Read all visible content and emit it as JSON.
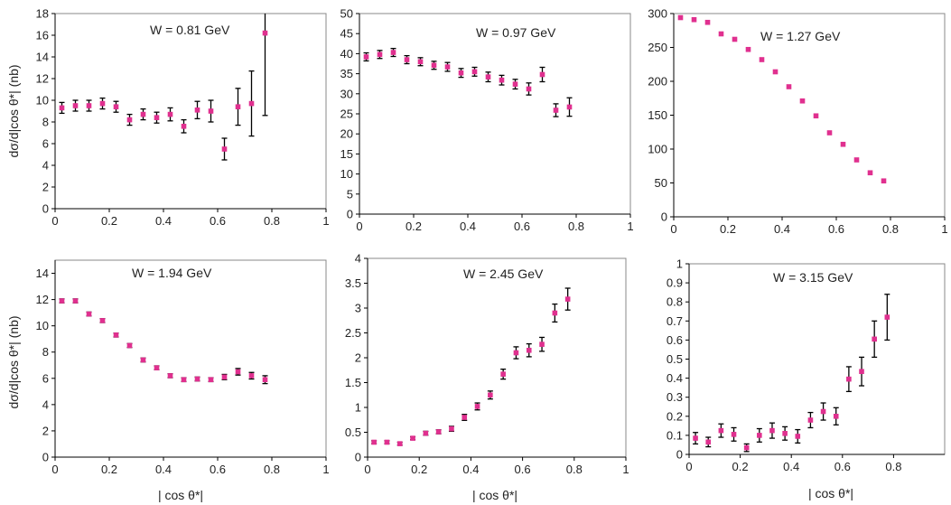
{
  "chart_data": [
    {
      "type": "scatter",
      "annotation": "W = 0.81 GeV",
      "xlabel": "",
      "ylabel": "dσ/d|cos θ*| (nb)",
      "xlim": [
        0,
        1
      ],
      "xticks": [
        0,
        0.2,
        0.4,
        0.6,
        0.8,
        1
      ],
      "xticklabels": [
        "0",
        "0.2",
        "0.4",
        "0.6",
        "0.8",
        "1"
      ],
      "ylim": [
        0,
        18
      ],
      "yticks": [
        0,
        2,
        4,
        6,
        8,
        10,
        12,
        14,
        16,
        18
      ],
      "yticklabels": [
        "0",
        "2",
        "4",
        "6",
        "8",
        "10",
        "12",
        "14",
        "16",
        "18"
      ],
      "marker_color": "#e0308f",
      "points": [
        {
          "x": 0.025,
          "y": 9.3,
          "err": 0.5
        },
        {
          "x": 0.075,
          "y": 9.5,
          "err": 0.5
        },
        {
          "x": 0.125,
          "y": 9.5,
          "err": 0.5
        },
        {
          "x": 0.175,
          "y": 9.7,
          "err": 0.5
        },
        {
          "x": 0.225,
          "y": 9.4,
          "err": 0.5
        },
        {
          "x": 0.275,
          "y": 8.2,
          "err": 0.5
        },
        {
          "x": 0.325,
          "y": 8.7,
          "err": 0.5
        },
        {
          "x": 0.375,
          "y": 8.4,
          "err": 0.5
        },
        {
          "x": 0.425,
          "y": 8.7,
          "err": 0.6
        },
        {
          "x": 0.475,
          "y": 7.6,
          "err": 0.6
        },
        {
          "x": 0.525,
          "y": 9.1,
          "err": 0.8
        },
        {
          "x": 0.575,
          "y": 9.0,
          "err": 1.0
        },
        {
          "x": 0.625,
          "y": 5.5,
          "err": 1.0
        },
        {
          "x": 0.675,
          "y": 9.4,
          "err": 1.7
        },
        {
          "x": 0.725,
          "y": 9.7,
          "err": 3.0
        },
        {
          "x": 0.775,
          "y": 16.2,
          "err": 7.6
        }
      ]
    },
    {
      "type": "scatter",
      "annotation": "W = 0.97 GeV",
      "xlabel": "",
      "ylabel": "",
      "xlim": [
        0,
        1
      ],
      "xticks": [
        0,
        0.2,
        0.4,
        0.6,
        0.8,
        1
      ],
      "xticklabels": [
        "0",
        "0.2",
        "0.4",
        "0.6",
        "0.8",
        "1"
      ],
      "ylim": [
        0,
        50
      ],
      "yticks": [
        0,
        5,
        10,
        15,
        20,
        25,
        30,
        35,
        40,
        45,
        50
      ],
      "yticklabels": [
        "0",
        "5",
        "10",
        "15",
        "20",
        "25",
        "30",
        "35",
        "40",
        "45",
        "50"
      ],
      "marker_color": "#e0308f",
      "points": [
        {
          "x": 0.025,
          "y": 39.2,
          "err": 1.0
        },
        {
          "x": 0.075,
          "y": 39.8,
          "err": 1.0
        },
        {
          "x": 0.125,
          "y": 40.3,
          "err": 1.0
        },
        {
          "x": 0.175,
          "y": 38.5,
          "err": 1.0
        },
        {
          "x": 0.225,
          "y": 38.0,
          "err": 1.0
        },
        {
          "x": 0.275,
          "y": 37.1,
          "err": 1.0
        },
        {
          "x": 0.325,
          "y": 36.7,
          "err": 1.1
        },
        {
          "x": 0.375,
          "y": 35.2,
          "err": 1.1
        },
        {
          "x": 0.425,
          "y": 35.5,
          "err": 1.1
        },
        {
          "x": 0.475,
          "y": 34.2,
          "err": 1.2
        },
        {
          "x": 0.525,
          "y": 33.4,
          "err": 1.2
        },
        {
          "x": 0.575,
          "y": 32.4,
          "err": 1.2
        },
        {
          "x": 0.625,
          "y": 31.2,
          "err": 1.5
        },
        {
          "x": 0.675,
          "y": 34.8,
          "err": 1.8
        },
        {
          "x": 0.725,
          "y": 25.9,
          "err": 1.6
        },
        {
          "x": 0.775,
          "y": 26.7,
          "err": 2.3
        }
      ]
    },
    {
      "type": "scatter",
      "annotation": "W =  1.27 GeV",
      "xlabel": "",
      "ylabel": "",
      "xlim": [
        0,
        1
      ],
      "xticks": [
        0,
        0.2,
        0.4,
        0.6,
        0.8,
        1
      ],
      "xticklabels": [
        "0",
        "0.2",
        "0.4",
        "0.6",
        "0.8",
        "1"
      ],
      "ylim": [
        0,
        300
      ],
      "yticks": [
        0,
        50,
        100,
        150,
        200,
        250,
        300
      ],
      "yticklabels": [
        "0",
        "50",
        "100",
        "150",
        "200",
        "250",
        "300"
      ],
      "marker_color": "#e0308f",
      "points": [
        {
          "x": 0.025,
          "y": 294,
          "err": 0
        },
        {
          "x": 0.075,
          "y": 291,
          "err": 0
        },
        {
          "x": 0.125,
          "y": 287,
          "err": 0
        },
        {
          "x": 0.175,
          "y": 270,
          "err": 0
        },
        {
          "x": 0.225,
          "y": 262,
          "err": 0
        },
        {
          "x": 0.275,
          "y": 247,
          "err": 0
        },
        {
          "x": 0.325,
          "y": 232,
          "err": 0
        },
        {
          "x": 0.375,
          "y": 214,
          "err": 0
        },
        {
          "x": 0.425,
          "y": 192,
          "err": 0
        },
        {
          "x": 0.475,
          "y": 171,
          "err": 0
        },
        {
          "x": 0.525,
          "y": 149,
          "err": 0
        },
        {
          "x": 0.575,
          "y": 124,
          "err": 0
        },
        {
          "x": 0.625,
          "y": 107,
          "err": 0
        },
        {
          "x": 0.675,
          "y": 84,
          "err": 0
        },
        {
          "x": 0.725,
          "y": 65,
          "err": 0
        },
        {
          "x": 0.775,
          "y": 53,
          "err": 0
        }
      ]
    },
    {
      "type": "scatter",
      "annotation": "W = 1.94 GeV",
      "xlabel": "| cos θ*|",
      "ylabel": "dσ/d|cos θ*| (nb)",
      "xlim": [
        0,
        1
      ],
      "xticks": [
        0,
        0.2,
        0.4,
        0.6,
        0.8,
        1
      ],
      "xticklabels": [
        "0",
        "0.2",
        "0.4",
        "0.6",
        "0.8",
        "1"
      ],
      "ylim": [
        0,
        15
      ],
      "yticks": [
        0,
        2,
        4,
        6,
        8,
        10,
        12,
        14
      ],
      "yticklabels": [
        "0",
        "2",
        "4",
        "6",
        "8",
        "10",
        "12",
        "14"
      ],
      "marker_color": "#e0308f",
      "points": [
        {
          "x": 0.025,
          "y": 11.9,
          "err": 0.15
        },
        {
          "x": 0.075,
          "y": 11.9,
          "err": 0.15
        },
        {
          "x": 0.125,
          "y": 10.9,
          "err": 0.15
        },
        {
          "x": 0.175,
          "y": 10.4,
          "err": 0.15
        },
        {
          "x": 0.225,
          "y": 9.3,
          "err": 0.15
        },
        {
          "x": 0.275,
          "y": 8.5,
          "err": 0.15
        },
        {
          "x": 0.325,
          "y": 7.4,
          "err": 0.15
        },
        {
          "x": 0.375,
          "y": 6.8,
          "err": 0.15
        },
        {
          "x": 0.425,
          "y": 6.2,
          "err": 0.15
        },
        {
          "x": 0.475,
          "y": 5.9,
          "err": 0.15
        },
        {
          "x": 0.525,
          "y": 5.95,
          "err": 0.15
        },
        {
          "x": 0.575,
          "y": 5.9,
          "err": 0.15
        },
        {
          "x": 0.625,
          "y": 6.1,
          "err": 0.2
        },
        {
          "x": 0.675,
          "y": 6.5,
          "err": 0.25
        },
        {
          "x": 0.725,
          "y": 6.2,
          "err": 0.25
        },
        {
          "x": 0.775,
          "y": 5.9,
          "err": 0.3
        }
      ]
    },
    {
      "type": "scatter",
      "annotation": "W = 2.45 GeV",
      "xlabel": "| cos θ*|",
      "ylabel": "",
      "xlim": [
        0,
        1
      ],
      "xticks": [
        0,
        0.2,
        0.4,
        0.6,
        0.8,
        1
      ],
      "xticklabels": [
        "0",
        "0.2",
        "0.4",
        "0.6",
        "0.8",
        "1"
      ],
      "ylim": [
        0,
        4
      ],
      "yticks": [
        0,
        0.5,
        1,
        1.5,
        2,
        2.5,
        3,
        3.5,
        4
      ],
      "yticklabels": [
        "0",
        "0.5",
        "1",
        "1.5",
        "2",
        "2.5",
        "3",
        "3.5",
        "4"
      ],
      "marker_color": "#e0308f",
      "points": [
        {
          "x": 0.025,
          "y": 0.3,
          "err": 0.03
        },
        {
          "x": 0.075,
          "y": 0.3,
          "err": 0.03
        },
        {
          "x": 0.125,
          "y": 0.27,
          "err": 0.03
        },
        {
          "x": 0.175,
          "y": 0.38,
          "err": 0.03
        },
        {
          "x": 0.225,
          "y": 0.48,
          "err": 0.04
        },
        {
          "x": 0.275,
          "y": 0.51,
          "err": 0.04
        },
        {
          "x": 0.325,
          "y": 0.57,
          "err": 0.05
        },
        {
          "x": 0.375,
          "y": 0.8,
          "err": 0.06
        },
        {
          "x": 0.425,
          "y": 1.02,
          "err": 0.07
        },
        {
          "x": 0.475,
          "y": 1.25,
          "err": 0.08
        },
        {
          "x": 0.525,
          "y": 1.67,
          "err": 0.1
        },
        {
          "x": 0.575,
          "y": 2.1,
          "err": 0.12
        },
        {
          "x": 0.625,
          "y": 2.15,
          "err": 0.13
        },
        {
          "x": 0.675,
          "y": 2.27,
          "err": 0.14
        },
        {
          "x": 0.725,
          "y": 2.9,
          "err": 0.18
        },
        {
          "x": 0.775,
          "y": 3.18,
          "err": 0.22
        }
      ]
    },
    {
      "type": "scatter",
      "annotation": "W =  3.15 GeV",
      "xlabel": "| cos θ*|",
      "ylabel": "",
      "xlim": [
        0,
        1
      ],
      "xticks": [
        0,
        0.2,
        0.4,
        0.6,
        0.8
      ],
      "xticklabels": [
        "0",
        "0.2",
        "0.4",
        "0.6",
        "0.8"
      ],
      "ylim": [
        0,
        1
      ],
      "yticks": [
        0,
        0.1,
        0.2,
        0.3,
        0.4,
        0.5,
        0.6,
        0.7,
        0.8,
        0.9,
        1
      ],
      "yticklabels": [
        "0",
        "0.1",
        "0.2",
        "0.3",
        "0.4",
        "0.5",
        "0.6",
        "0.7",
        "0.8",
        "0.9",
        "1"
      ],
      "marker_color": "#e0308f",
      "points": [
        {
          "x": 0.025,
          "y": 0.085,
          "err": 0.03
        },
        {
          "x": 0.075,
          "y": 0.065,
          "err": 0.025
        },
        {
          "x": 0.125,
          "y": 0.125,
          "err": 0.035
        },
        {
          "x": 0.175,
          "y": 0.105,
          "err": 0.035
        },
        {
          "x": 0.225,
          "y": 0.035,
          "err": 0.02
        },
        {
          "x": 0.275,
          "y": 0.1,
          "err": 0.035
        },
        {
          "x": 0.325,
          "y": 0.125,
          "err": 0.04
        },
        {
          "x": 0.375,
          "y": 0.11,
          "err": 0.035
        },
        {
          "x": 0.425,
          "y": 0.095,
          "err": 0.035
        },
        {
          "x": 0.475,
          "y": 0.18,
          "err": 0.04
        },
        {
          "x": 0.525,
          "y": 0.225,
          "err": 0.045
        },
        {
          "x": 0.575,
          "y": 0.2,
          "err": 0.045
        },
        {
          "x": 0.625,
          "y": 0.395,
          "err": 0.065
        },
        {
          "x": 0.675,
          "y": 0.435,
          "err": 0.075
        },
        {
          "x": 0.725,
          "y": 0.605,
          "err": 0.095
        },
        {
          "x": 0.775,
          "y": 0.72,
          "err": 0.12
        }
      ]
    }
  ]
}
